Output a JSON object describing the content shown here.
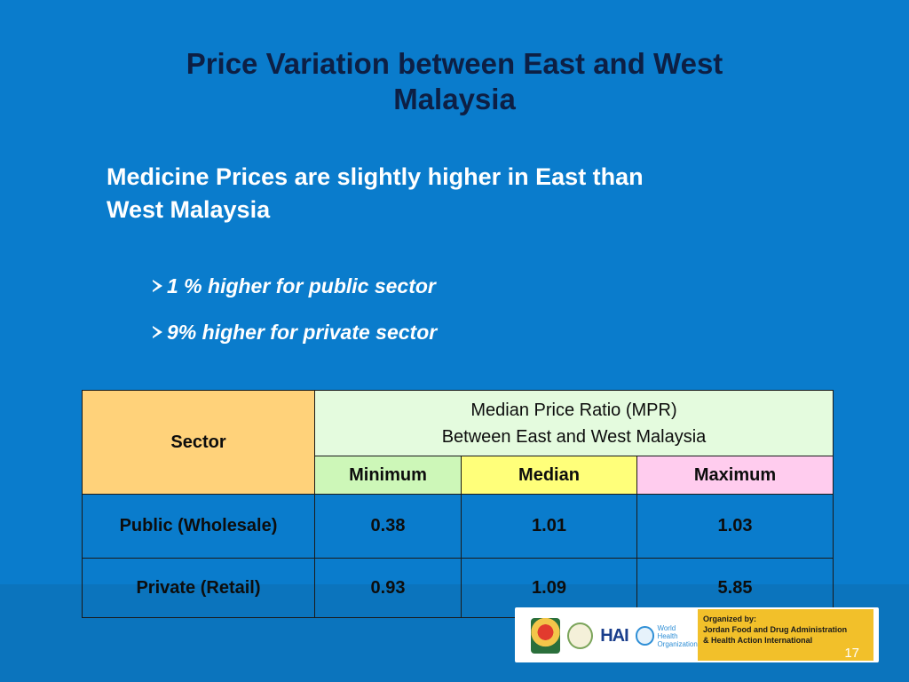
{
  "slide": {
    "title_line1": "Price Variation between  East and West",
    "title_line2": "Malaysia",
    "subtitle_line1": "Medicine Prices are slightly higher in East than",
    "subtitle_line2": "West Malaysia",
    "bullets": [
      "1 % higher for public sector",
      "9% higher for private sector"
    ],
    "page_number": "17"
  },
  "table": {
    "sector_header": "Sector",
    "mpr_header_line1": "Median Price Ratio (MPR)",
    "mpr_header_line2": "Between East and West Malaysia",
    "columns": [
      "Minimum",
      "Median",
      "Maximum"
    ],
    "rows": [
      {
        "sector": "Public (Wholesale)",
        "min": "0.38",
        "median": "1.01",
        "max": "1.03"
      },
      {
        "sector": "Private (Retail)",
        "min": "0.93",
        "median": "1.09",
        "max": "5.85"
      }
    ],
    "colors": {
      "sector_header": "#ffd27a",
      "mpr_header": "#e4fbde",
      "minimum": "#cdf7b8",
      "median": "#ffff7a",
      "maximum": "#ffccee"
    }
  },
  "footer": {
    "logos": [
      "jordan-emblem-icon",
      "jfda-seal-icon",
      "hai-logo",
      "who-logo"
    ],
    "hai_text": "HAI",
    "who_line1": "World Health",
    "who_line2": "Organization",
    "organized_line1": "Organized by:",
    "organized_line2": "Jordan Food and Drug Administration",
    "organized_line3": "& Health Action International"
  },
  "theme": {
    "background": "#0a7ccc",
    "title_color": "#0d1f44",
    "text_color": "#ffffff",
    "accent_yellow": "#f2c02a"
  }
}
